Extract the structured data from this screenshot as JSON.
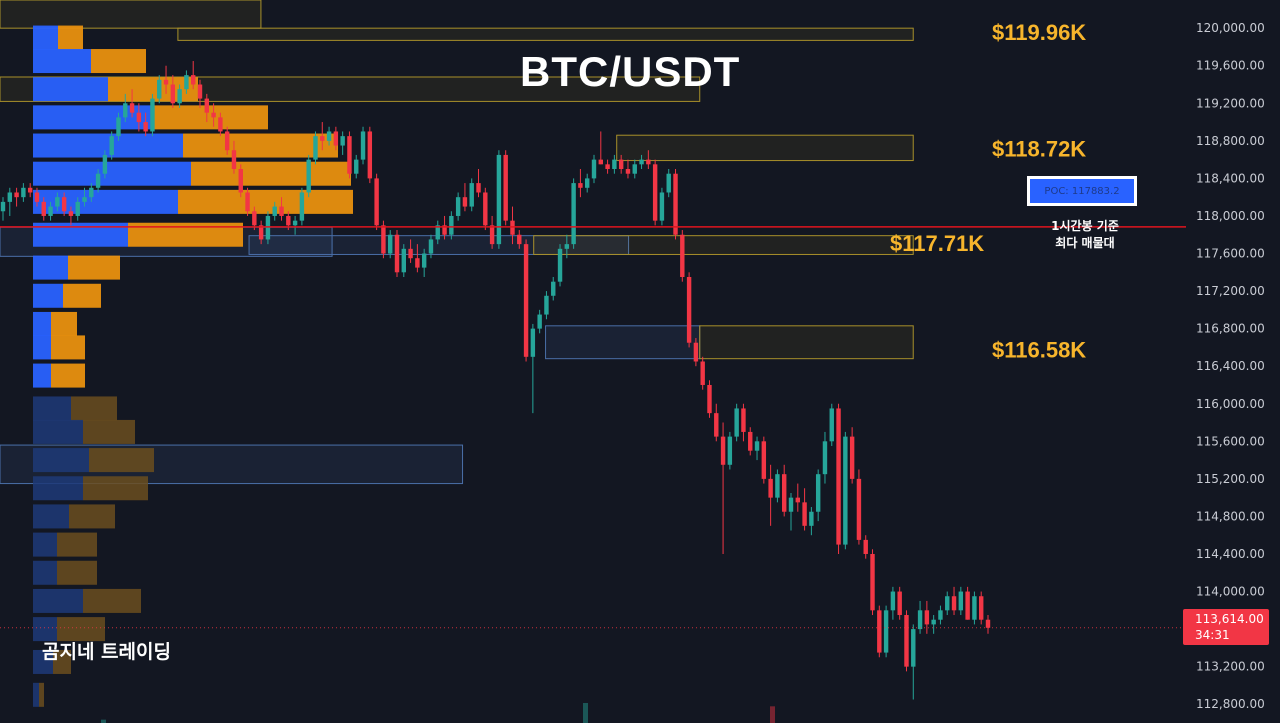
{
  "title": "BTC/USDT",
  "watermark": "곰지네 트레이딩",
  "poc": {
    "label": "POC: 117883.2",
    "note_line1": "1시간봉 기준",
    "note_line2": "최다 매물대"
  },
  "current_price": {
    "price": "113,614.00",
    "countdown": "34:31"
  },
  "colors": {
    "background": "#131722",
    "bull": "#26a69a",
    "bear": "#f23645",
    "level_label": "#f7b52c",
    "poc_line": "#e0141e",
    "vp_blue": "#2962ff",
    "vp_orange": "#e8900f"
  },
  "chart_data": {
    "type": "candlestick",
    "title": "BTC/USDT",
    "y_axis": {
      "side": "right",
      "ylim": [
        112600,
        120300
      ],
      "ticks": [
        "120,000.00",
        "119,600.00",
        "119,200.00",
        "118,800.00",
        "118,400.00",
        "118,000.00",
        "117,600.00",
        "117,200.00",
        "116,800.00",
        "116,400.00",
        "116,000.00",
        "115,600.00",
        "115,200.00",
        "114,800.00",
        "114,400.00",
        "114,000.00",
        "113,200.00",
        "112,800.00"
      ],
      "tick_values": [
        120000,
        119600,
        119200,
        118800,
        118400,
        118000,
        117600,
        117200,
        116800,
        116400,
        116000,
        115600,
        115200,
        114800,
        114400,
        114000,
        113200,
        112800
      ]
    },
    "levels": [
      {
        "label": "$119.96K",
        "value": 119960
      },
      {
        "label": "$118.72K",
        "value": 118720
      },
      {
        "label": "$117.71K",
        "value": 117710
      },
      {
        "label": "$116.58K",
        "value": 116580
      }
    ],
    "poc": 117883.2,
    "last_price": 113614,
    "candles_ohlc": [
      [
        118050,
        118200,
        117950,
        118150
      ],
      [
        118150,
        118300,
        118000,
        118250
      ],
      [
        118250,
        118300,
        118100,
        118200
      ],
      [
        118200,
        118350,
        118150,
        118300
      ],
      [
        118300,
        118350,
        118200,
        118250
      ],
      [
        118250,
        118300,
        118100,
        118150
      ],
      [
        118150,
        118200,
        117950,
        118000
      ],
      [
        118000,
        118150,
        117950,
        118100
      ],
      [
        118100,
        118250,
        118050,
        118200
      ],
      [
        118200,
        118250,
        118000,
        118050
      ],
      [
        118050,
        118100,
        117900,
        118000
      ],
      [
        118000,
        118200,
        117950,
        118150
      ],
      [
        118150,
        118300,
        118100,
        118200
      ],
      [
        118200,
        118350,
        118150,
        118300
      ],
      [
        118300,
        118500,
        118250,
        118450
      ],
      [
        118450,
        118700,
        118400,
        118650
      ],
      [
        118650,
        118900,
        118600,
        118850
      ],
      [
        118850,
        119100,
        118800,
        119050
      ],
      [
        119050,
        119300,
        119000,
        119200
      ],
      [
        119200,
        119350,
        119050,
        119100
      ],
      [
        119100,
        119200,
        118900,
        119000
      ],
      [
        119000,
        119100,
        118850,
        118900
      ],
      [
        118900,
        119300,
        118850,
        119250
      ],
      [
        119250,
        119500,
        119200,
        119450
      ],
      [
        119450,
        119600,
        119300,
        119400
      ],
      [
        119400,
        119500,
        119150,
        119200
      ],
      [
        119200,
        119400,
        119150,
        119350
      ],
      [
        119350,
        119550,
        119300,
        119500
      ],
      [
        119500,
        119650,
        119350,
        119400
      ],
      [
        119400,
        119450,
        119150,
        119250
      ],
      [
        119250,
        119300,
        119000,
        119100
      ],
      [
        119100,
        119200,
        118950,
        119050
      ],
      [
        119050,
        119100,
        118850,
        118900
      ],
      [
        118900,
        118950,
        118650,
        118700
      ],
      [
        118700,
        118800,
        118450,
        118500
      ],
      [
        118500,
        118550,
        118200,
        118250
      ],
      [
        118250,
        118300,
        118000,
        118050
      ],
      [
        118050,
        118100,
        117850,
        117900
      ],
      [
        117900,
        117950,
        117700,
        117750
      ],
      [
        117750,
        118050,
        117700,
        118000
      ],
      [
        118000,
        118150,
        117950,
        118100
      ],
      [
        118100,
        118200,
        117950,
        118000
      ],
      [
        118000,
        118050,
        117850,
        117900
      ],
      [
        117900,
        118000,
        117800,
        117950
      ],
      [
        117950,
        118300,
        117900,
        118250
      ],
      [
        118250,
        118650,
        118200,
        118600
      ],
      [
        118600,
        118900,
        118550,
        118850
      ],
      [
        118850,
        119000,
        118700,
        118800
      ],
      [
        118800,
        118950,
        118750,
        118900
      ],
      [
        118900,
        118950,
        118700,
        118750
      ],
      [
        118750,
        118900,
        118650,
        118850
      ],
      [
        118850,
        118900,
        118400,
        118450
      ],
      [
        118450,
        118650,
        118400,
        118600
      ],
      [
        118600,
        118950,
        118550,
        118900
      ],
      [
        118900,
        118950,
        118350,
        118400
      ],
      [
        118400,
        118450,
        117850,
        117900
      ],
      [
        117900,
        117950,
        117550,
        117600
      ],
      [
        117600,
        117850,
        117550,
        117800
      ],
      [
        117800,
        117850,
        117350,
        117400
      ],
      [
        117400,
        117700,
        117350,
        117650
      ],
      [
        117650,
        117750,
        117500,
        117550
      ],
      [
        117550,
        117700,
        117400,
        117450
      ],
      [
        117450,
        117650,
        117350,
        117600
      ],
      [
        117600,
        117800,
        117550,
        117750
      ],
      [
        117750,
        117950,
        117700,
        117900
      ],
      [
        117900,
        118000,
        117750,
        117800
      ],
      [
        117800,
        118050,
        117750,
        118000
      ],
      [
        118000,
        118250,
        117950,
        118200
      ],
      [
        118200,
        118350,
        118050,
        118100
      ],
      [
        118100,
        118400,
        118050,
        118350
      ],
      [
        118350,
        118500,
        118200,
        118250
      ],
      [
        118250,
        118300,
        117850,
        117900
      ],
      [
        117900,
        118000,
        117650,
        117700
      ],
      [
        117700,
        118700,
        117650,
        118650
      ],
      [
        118650,
        118700,
        117900,
        117950
      ],
      [
        117950,
        118100,
        117700,
        117800
      ],
      [
        117800,
        117850,
        117650,
        117700
      ],
      [
        117700,
        117750,
        116450,
        116500
      ],
      [
        116500,
        116850,
        115900,
        116800
      ],
      [
        116800,
        117000,
        116750,
        116950
      ],
      [
        116950,
        117200,
        116900,
        117150
      ],
      [
        117150,
        117350,
        117100,
        117300
      ],
      [
        117300,
        117700,
        117250,
        117650
      ],
      [
        117650,
        117800,
        117550,
        117700
      ],
      [
        117700,
        118400,
        117650,
        118350
      ],
      [
        118350,
        118500,
        118200,
        118300
      ],
      [
        118300,
        118450,
        118250,
        118400
      ],
      [
        118400,
        118650,
        118350,
        118600
      ],
      [
        118600,
        118900,
        118550,
        118550
      ],
      [
        118550,
        118600,
        118450,
        118500
      ],
      [
        118500,
        118650,
        118450,
        118600
      ],
      [
        118600,
        118650,
        118450,
        118500
      ],
      [
        118500,
        118600,
        118400,
        118450
      ],
      [
        118450,
        118600,
        118400,
        118550
      ],
      [
        118550,
        118650,
        118500,
        118600
      ],
      [
        118600,
        118700,
        118500,
        118550
      ],
      [
        118550,
        118600,
        117900,
        117950
      ],
      [
        117950,
        118300,
        117900,
        118250
      ],
      [
        118250,
        118500,
        118200,
        118450
      ],
      [
        118450,
        118500,
        117750,
        117800
      ],
      [
        117800,
        117850,
        117300,
        117350
      ],
      [
        117350,
        117400,
        116600,
        116650
      ],
      [
        116650,
        116700,
        116400,
        116450
      ],
      [
        116450,
        116500,
        116150,
        116200
      ],
      [
        116200,
        116250,
        115850,
        115900
      ],
      [
        115900,
        116000,
        115600,
        115650
      ],
      [
        115650,
        115800,
        114400,
        115350
      ],
      [
        115350,
        115700,
        115300,
        115650
      ],
      [
        115650,
        116000,
        115600,
        115950
      ],
      [
        115950,
        116000,
        115600,
        115700
      ],
      [
        115700,
        115750,
        115450,
        115500
      ],
      [
        115500,
        115650,
        115400,
        115600
      ],
      [
        115600,
        115650,
        115150,
        115200
      ],
      [
        115200,
        115350,
        114700,
        115000
      ],
      [
        115000,
        115300,
        114950,
        115250
      ],
      [
        115250,
        115350,
        114800,
        114850
      ],
      [
        114850,
        115050,
        114650,
        115000
      ],
      [
        115000,
        115150,
        114850,
        114950
      ],
      [
        114950,
        115100,
        114650,
        114700
      ],
      [
        114700,
        114900,
        114600,
        114850
      ],
      [
        114850,
        115300,
        114750,
        115250
      ],
      [
        115250,
        115700,
        115150,
        115600
      ],
      [
        115600,
        116000,
        115550,
        115950
      ],
      [
        115950,
        116000,
        114400,
        114500
      ],
      [
        114500,
        115700,
        114450,
        115650
      ],
      [
        115650,
        115750,
        115150,
        115200
      ],
      [
        115200,
        115300,
        114500,
        114550
      ],
      [
        114550,
        114600,
        114350,
        114400
      ],
      [
        114400,
        114450,
        113750,
        113800
      ],
      [
        113800,
        113850,
        113300,
        113350
      ],
      [
        113350,
        113850,
        113300,
        113800
      ],
      [
        113800,
        114050,
        113700,
        114000
      ],
      [
        114000,
        114050,
        113700,
        113750
      ],
      [
        113750,
        113800,
        113150,
        113200
      ],
      [
        113200,
        113650,
        112850,
        113600
      ],
      [
        113600,
        113900,
        113550,
        113800
      ],
      [
        113800,
        113900,
        113550,
        113650
      ],
      [
        113650,
        113750,
        113550,
        113700
      ],
      [
        113700,
        113850,
        113650,
        113800
      ],
      [
        113800,
        114000,
        113750,
        113950
      ],
      [
        113950,
        114050,
        113750,
        113800
      ],
      [
        113800,
        114050,
        113750,
        114000
      ],
      [
        114000,
        114050,
        113700,
        113700
      ],
      [
        113700,
        114000,
        113650,
        113950
      ],
      [
        113950,
        114000,
        113650,
        113700
      ],
      [
        113700,
        113750,
        113550,
        113614
      ]
    ],
    "volume_profile": [
      {
        "price": 119900,
        "buy": 25,
        "sell": 25
      },
      {
        "price": 119650,
        "buy": 58,
        "sell": 55
      },
      {
        "price": 119350,
        "buy": 75,
        "sell": 90
      },
      {
        "price": 119050,
        "buy": 120,
        "sell": 115
      },
      {
        "price": 118750,
        "buy": 150,
        "sell": 155
      },
      {
        "price": 118450,
        "buy": 158,
        "sell": 160
      },
      {
        "price": 118150,
        "buy": 145,
        "sell": 175
      },
      {
        "price": 117800,
        "buy": 95,
        "sell": 115
      },
      {
        "price": 117450,
        "buy": 35,
        "sell": 52
      },
      {
        "price": 117150,
        "buy": 30,
        "sell": 38
      },
      {
        "price": 116850,
        "buy": 18,
        "sell": 26
      },
      {
        "price": 116600,
        "buy": 18,
        "sell": 34
      },
      {
        "price": 116300,
        "buy": 18,
        "sell": 34
      },
      {
        "price": 115950,
        "buy": 38,
        "sell": 46
      },
      {
        "price": 115700,
        "buy": 50,
        "sell": 52
      },
      {
        "price": 115400,
        "buy": 56,
        "sell": 65
      },
      {
        "price": 115100,
        "buy": 50,
        "sell": 65
      },
      {
        "price": 114800,
        "buy": 36,
        "sell": 46
      },
      {
        "price": 114500,
        "buy": 24,
        "sell": 40
      },
      {
        "price": 114200,
        "buy": 24,
        "sell": 40
      },
      {
        "price": 113900,
        "buy": 50,
        "sell": 58
      },
      {
        "price": 113600,
        "buy": 24,
        "sell": 48
      },
      {
        "price": 113250,
        "buy": 20,
        "sell": 18
      },
      {
        "price": 112900,
        "buy": 6,
        "sell": 5
      }
    ],
    "zones": [
      {
        "type": "supply",
        "y_high": 120300,
        "y_low": 120000,
        "x_from": 0,
        "x_to": 0.22
      },
      {
        "type": "supply",
        "y_high": 120000,
        "y_low": 119870,
        "x_from": 0.15,
        "x_to": 0.77
      },
      {
        "type": "supply",
        "y_high": 119480,
        "y_low": 119220,
        "x_from": 0,
        "x_to": 0.59
      },
      {
        "type": "supply",
        "y_high": 118860,
        "y_low": 118590,
        "x_from": 0.52,
        "x_to": 0.77
      },
      {
        "type": "demand",
        "y_high": 117880,
        "y_low": 117570,
        "x_from": 0,
        "x_to": 0.28
      },
      {
        "type": "demand",
        "y_high": 117790,
        "y_low": 117590,
        "x_from": 0.21,
        "x_to": 0.53
      },
      {
        "type": "supply",
        "y_high": 117790,
        "y_low": 117590,
        "x_from": 0.45,
        "x_to": 0.77
      },
      {
        "type": "demand",
        "y_high": 116830,
        "y_low": 116480,
        "x_from": 0.46,
        "x_to": 0.59
      },
      {
        "type": "supply",
        "y_high": 116830,
        "y_low": 116480,
        "x_from": 0.59,
        "x_to": 0.77
      },
      {
        "type": "demand",
        "y_high": 115560,
        "y_low": 115150,
        "x_from": 0,
        "x_to": 0.39
      }
    ],
    "grid": false
  }
}
